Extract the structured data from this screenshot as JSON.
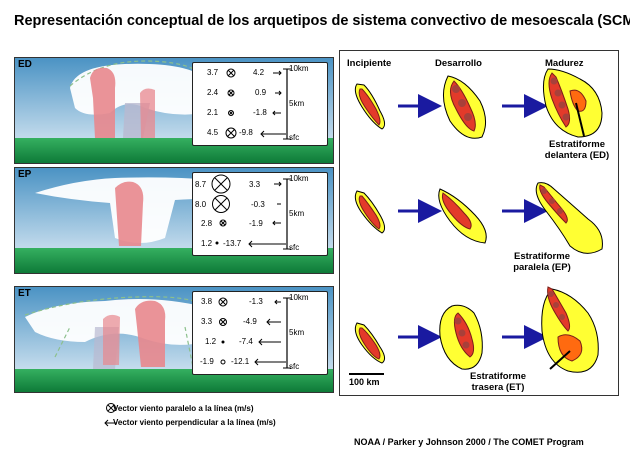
{
  "title": "Representación conceptual de los arquetipos de sistema convectivo de mesoescala (SCM)",
  "panels": [
    {
      "label": "ED",
      "rows": [
        [
          "3.7",
          "4.2"
        ],
        [
          "2.4",
          "0.9"
        ],
        [
          "2.1",
          "-1.8"
        ],
        [
          "4.5",
          "-9.8"
        ]
      ]
    },
    {
      "label": "EP",
      "rows": [
        [
          "8.7",
          "3.3"
        ],
        [
          "8.0",
          "-0.3"
        ],
        [
          "2.8",
          "-1.9"
        ],
        [
          "1.2",
          "-13.7"
        ]
      ]
    },
    {
      "label": "ET",
      "rows": [
        [
          "3.8",
          "-1.3"
        ],
        [
          "3.3",
          "-4.9"
        ],
        [
          "1.2",
          "-7.4"
        ],
        [
          "-1.9",
          "-12.1"
        ]
      ]
    }
  ],
  "axis": {
    "top": "10km",
    "mid": "5km",
    "bottom": "sfc"
  },
  "stages": [
    "Incipiente",
    "Desarrollo",
    "Madurez"
  ],
  "region_labels": {
    "ed": [
      "Estratiforme",
      "delantera (ED)"
    ],
    "ep": [
      "Estratiforme",
      "paralela (EP)"
    ],
    "et": [
      "Estratiforme",
      "trasera (ET)"
    ]
  },
  "scale_label": "100 km",
  "legend": {
    "parallel": "Vector viento paralelo a la línea (m/s)",
    "perpendicular": "Vector viento perpendicular a la línea (m/s)"
  },
  "credit": "NOAA / Parker y Johnson 2000 / The COMET Program",
  "colors": {
    "sky": "#5b9fc9",
    "ground": "#1f9a4f",
    "core": "#e8878d",
    "stratiform_yellow": "#ffff33",
    "convective_red": "#e33a2a",
    "cell": "#a8403a",
    "arrow": "#1a1aa0"
  },
  "icons": {
    "parallel": "circled-x-icon",
    "perpendicular": "left-arrow-icon"
  }
}
